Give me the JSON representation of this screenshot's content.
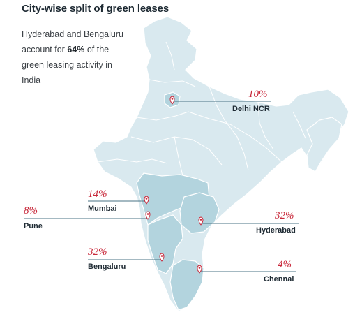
{
  "title": "City-wise split of green leases",
  "description": {
    "before": "Hyderabad and Bengaluru account for ",
    "highlight": "64%",
    "after": " of the green leasing activity in India"
  },
  "colors": {
    "map_fill": "#d9e9ef",
    "state_fill": "#b3d4de",
    "border": "#ffffff",
    "label_value": "#c8283a",
    "leader_line": "#4a7384",
    "pin": "#c8283a"
  },
  "cities": [
    {
      "name": "Delhi NCR",
      "share": "10%"
    },
    {
      "name": "Mumbai",
      "share": "14%"
    },
    {
      "name": "Pune",
      "share": "8%"
    },
    {
      "name": "Hyderabad",
      "share": "32%"
    },
    {
      "name": "Bengaluru",
      "share": "32%"
    },
    {
      "name": "Chennai",
      "share": "4%"
    }
  ]
}
